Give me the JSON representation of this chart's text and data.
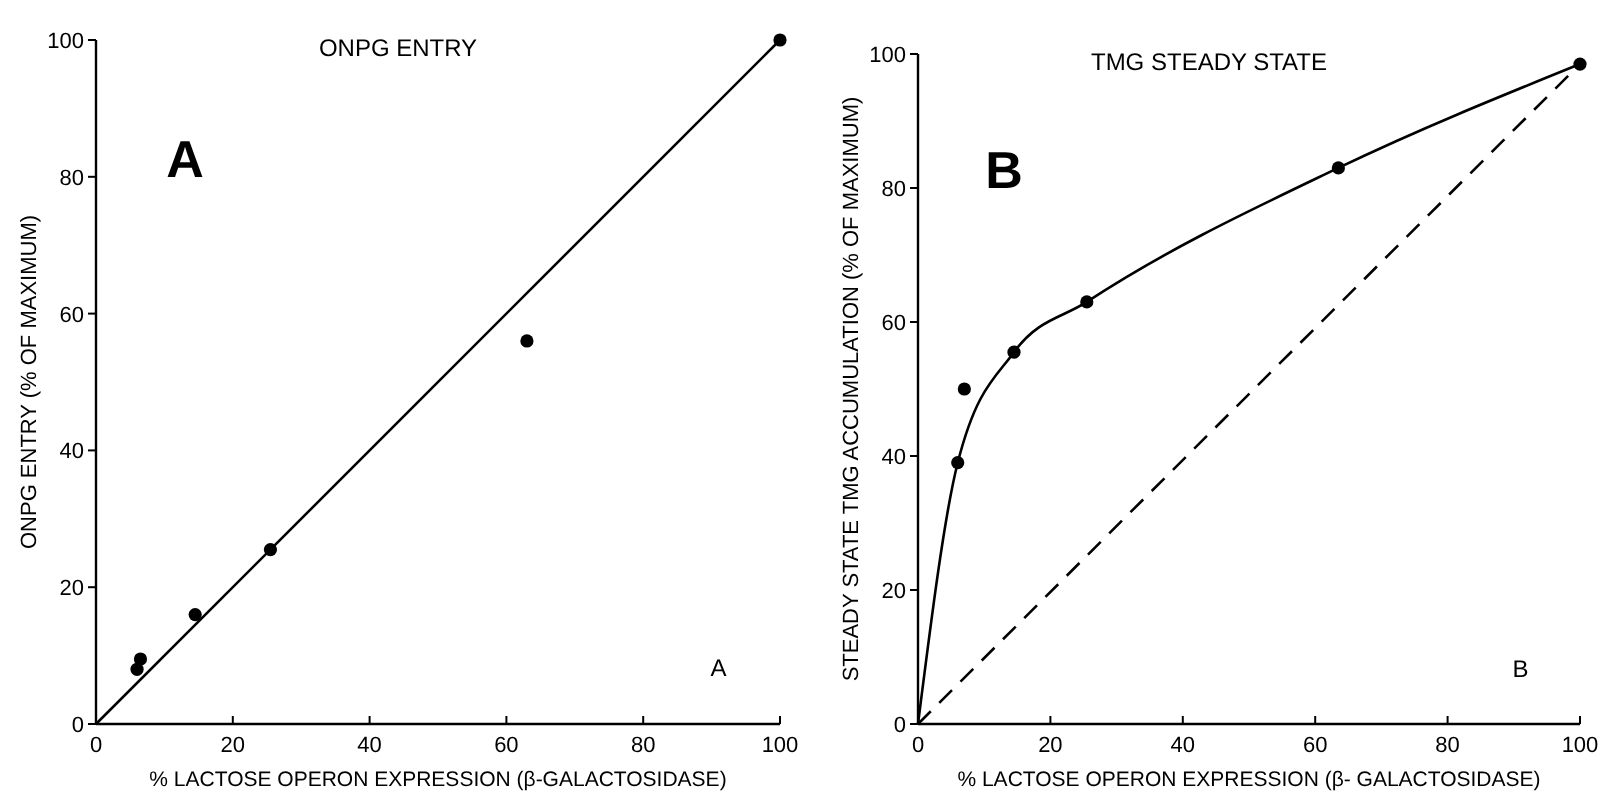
{
  "chart_data": [
    {
      "type": "scatter",
      "title": "ONPG ENTRY",
      "xlabel": "% LACTOSE OPERON EXPRESSION (β-GALACTOSIDASE)",
      "ylabel": "ONPG ENTRY (% OF MAXIMUM)",
      "annotations": [
        "A",
        "A"
      ],
      "xlim": [
        0,
        100
      ],
      "ylim": [
        0,
        100
      ],
      "xticks": [
        0,
        20,
        40,
        60,
        80,
        100
      ],
      "yticks": [
        0,
        20,
        40,
        60,
        80,
        100
      ],
      "series": [
        {
          "type": "scatter",
          "color": "#000000",
          "marker": "circle",
          "x": [
            6,
            6.5,
            14.5,
            25.5,
            63,
            100
          ],
          "values": [
            8,
            9.5,
            16,
            25.5,
            56,
            100
          ]
        },
        {
          "type": "line",
          "color": "#000000",
          "marker": "none",
          "line_style": "solid",
          "x": [
            0,
            100
          ],
          "values": [
            0,
            100
          ]
        }
      ]
    },
    {
      "type": "scatter",
      "title": "TMG STEADY STATE",
      "xlabel": "% LACTOSE OPERON EXPRESSION (β- GALACTOSIDASE)",
      "ylabel": "STEADY STATE TMG ACCUMULATION (% OF MAXIMUM)",
      "annotations": [
        "B",
        "B"
      ],
      "xlim": [
        0,
        100
      ],
      "ylim": [
        0,
        100
      ],
      "xticks": [
        0,
        20,
        40,
        60,
        80,
        100
      ],
      "yticks": [
        0,
        20,
        40,
        60,
        80,
        100
      ],
      "series": [
        {
          "type": "scatter",
          "color": "#000000",
          "marker": "circle",
          "x": [
            6,
            7,
            14.5,
            25.5,
            63.5,
            100
          ],
          "values": [
            39,
            50,
            55.5,
            63,
            83,
            98.5
          ]
        },
        {
          "type": "line",
          "color": "#000000",
          "marker": "none",
          "line_style": "solid",
          "x": [
            0,
            6,
            14.5,
            25.5,
            63.5,
            100
          ],
          "values": [
            0,
            39,
            55.5,
            63,
            83,
            98.5
          ]
        },
        {
          "type": "line",
          "color": "#000000",
          "marker": "none",
          "line_style": "dashed",
          "x": [
            0,
            100
          ],
          "values": [
            0,
            98.5
          ]
        }
      ]
    }
  ]
}
